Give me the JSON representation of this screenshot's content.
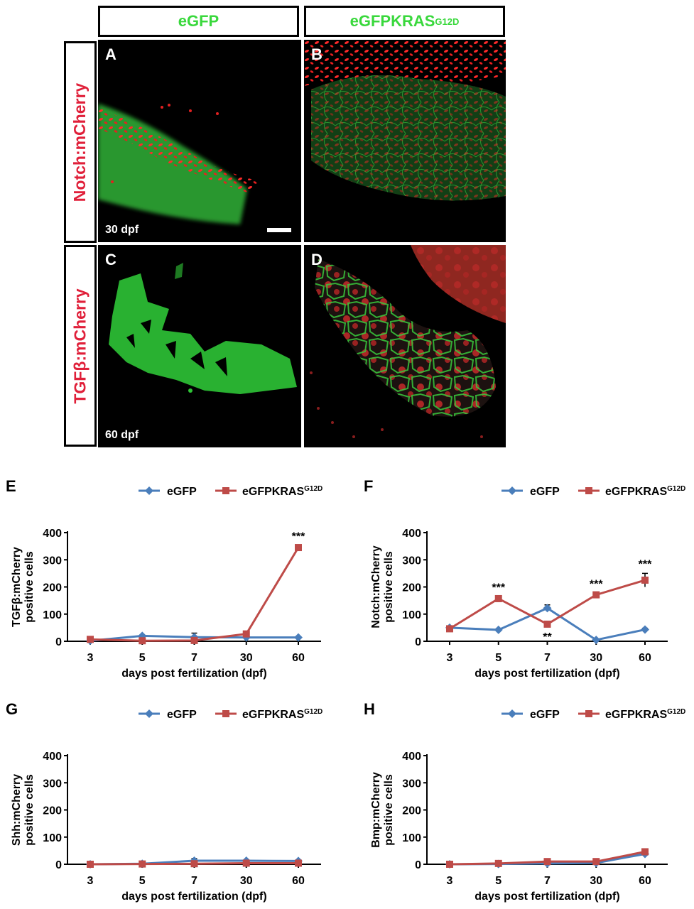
{
  "headers": [
    {
      "text": "eGFP",
      "sup": ""
    },
    {
      "text": "eGFPKRAS",
      "sup": "G12D"
    }
  ],
  "row_labels": [
    "Notch:mCherry",
    "TGFβ:mCherry"
  ],
  "micro_panels": [
    {
      "letter": "A",
      "note": "30 dpf"
    },
    {
      "letter": "B",
      "note": ""
    },
    {
      "letter": "C",
      "note": "60 dpf"
    },
    {
      "letter": "D",
      "note": ""
    }
  ],
  "colors": {
    "egfp": "#4a7ebb",
    "kras": "#be4b48",
    "green": "#39d83c",
    "red": "#e0203a"
  },
  "chart_data": [
    {
      "panel": "E",
      "type": "line",
      "categories": [
        "3",
        "5",
        "7",
        "30",
        "60"
      ],
      "xlabel": "days post fertilization (dpf)",
      "ylabel": [
        "TGFβ:mCherry",
        "positive cells"
      ],
      "ylim": [
        0,
        400
      ],
      "yticks": [
        0,
        100,
        200,
        300,
        400
      ],
      "legend": [
        "eGFP",
        "eGFPKRAS",
        "G12D"
      ],
      "series": [
        {
          "name": "eGFP",
          "values": [
            2,
            20,
            15,
            14,
            14
          ],
          "err": [
            0,
            3,
            15,
            3,
            3
          ]
        },
        {
          "name": "eGFPKRAS",
          "values": [
            7,
            2,
            3,
            27,
            345
          ],
          "err": [
            2,
            1,
            1,
            4,
            6
          ]
        }
      ],
      "annotations": [
        {
          "index": 4,
          "text": "***",
          "pos": "above"
        }
      ]
    },
    {
      "panel": "F",
      "type": "line",
      "categories": [
        "3",
        "5",
        "7",
        "30",
        "60"
      ],
      "xlabel": "days post fertilization (dpf)",
      "ylabel": [
        "Notch:mCherry",
        "positive cells"
      ],
      "ylim": [
        0,
        400
      ],
      "yticks": [
        0,
        100,
        200,
        300,
        400
      ],
      "legend": [
        "eGFP",
        "eGFPKRAS",
        "G12D"
      ],
      "series": [
        {
          "name": "eGFP",
          "values": [
            50,
            42,
            122,
            5,
            43
          ],
          "err": [
            4,
            4,
            12,
            2,
            5
          ]
        },
        {
          "name": "eGFPKRAS",
          "values": [
            46,
            157,
            63,
            171,
            225
          ],
          "err": [
            5,
            6,
            8,
            6,
            25
          ]
        }
      ],
      "annotations": [
        {
          "index": 1,
          "text": "***",
          "pos": "above"
        },
        {
          "index": 2,
          "text": "**",
          "pos": "below"
        },
        {
          "index": 3,
          "text": "***",
          "pos": "above"
        },
        {
          "index": 4,
          "text": "***",
          "pos": "above"
        }
      ]
    },
    {
      "panel": "G",
      "type": "line",
      "categories": [
        "3",
        "5",
        "7",
        "30",
        "60"
      ],
      "xlabel": "days post fertilization (dpf)",
      "ylabel": [
        "Shh:mCherry",
        "positive cells"
      ],
      "ylim": [
        0,
        400
      ],
      "yticks": [
        0,
        100,
        200,
        300,
        400
      ],
      "legend": [
        "eGFP",
        "eGFPKRAS",
        "G12D"
      ],
      "series": [
        {
          "name": "eGFP",
          "values": [
            0,
            2,
            13,
            13,
            12
          ],
          "err": [
            0,
            1,
            8,
            3,
            3
          ]
        },
        {
          "name": "eGFPKRAS",
          "values": [
            0,
            1,
            2,
            4,
            4
          ],
          "err": [
            0,
            1,
            1,
            1,
            1
          ]
        }
      ],
      "annotations": []
    },
    {
      "panel": "H",
      "type": "line",
      "categories": [
        "3",
        "5",
        "7",
        "30",
        "60"
      ],
      "xlabel": "days post fertilization (dpf)",
      "ylabel": [
        "Bmp:mCherry",
        "positive cells"
      ],
      "ylim": [
        0,
        400
      ],
      "yticks": [
        0,
        100,
        200,
        300,
        400
      ],
      "legend": [
        "eGFP",
        "eGFPKRAS",
        "G12D"
      ],
      "series": [
        {
          "name": "eGFP",
          "values": [
            0,
            1,
            3,
            5,
            38
          ],
          "err": [
            0,
            1,
            1,
            1,
            3
          ]
        },
        {
          "name": "eGFPKRAS",
          "values": [
            0,
            3,
            10,
            10,
            46
          ],
          "err": [
            0,
            1,
            2,
            2,
            4
          ]
        }
      ],
      "annotations": []
    }
  ]
}
